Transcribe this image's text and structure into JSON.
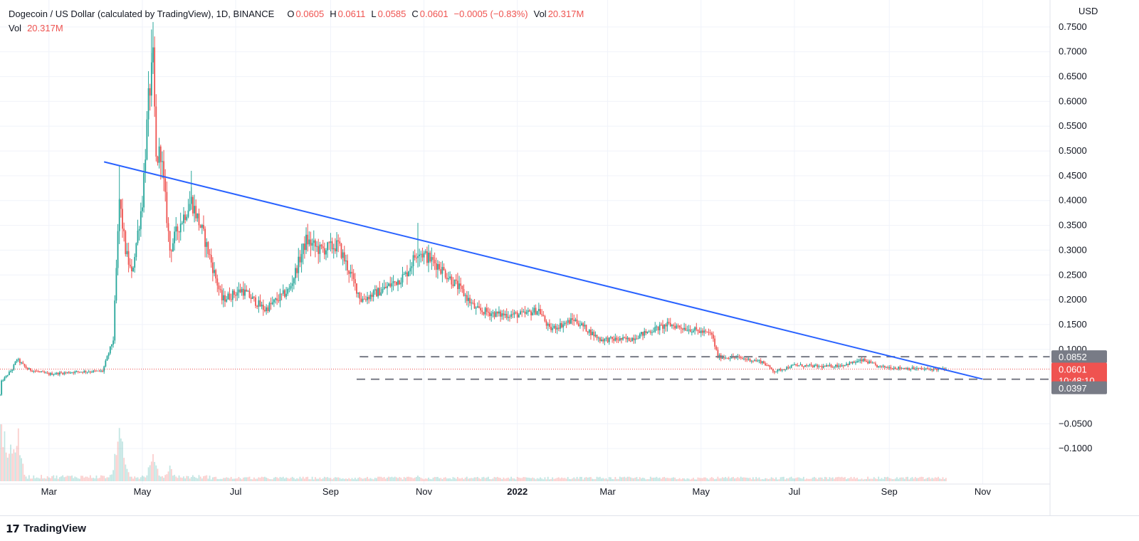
{
  "legend": {
    "title": "Dogecoin / US Dollar (calculated by TradingView), 1D, BINANCE",
    "open_label": "O",
    "open_value": "0.0605",
    "high_label": "H",
    "high_value": "0.0611",
    "low_label": "L",
    "low_value": "0.0585",
    "close_label": "C",
    "close_value": "0.0601",
    "change_value": "−0.0005 (−0.83%)",
    "vol_label": "Vol",
    "vol_value": "20.317M"
  },
  "currency": "USD",
  "footer": {
    "brand": "TradingView",
    "logo_glyph": "17"
  },
  "colors": {
    "up": "#26a69a",
    "down": "#ef5350",
    "trend": "#2962ff",
    "level": "#787b86",
    "current": "#ef5350"
  },
  "chart_data": {
    "type": "candlestick",
    "symbol": "DOGEUSD",
    "interval": "1D",
    "exchange": "BINANCE",
    "ylim": [
      -0.13,
      0.78
    ],
    "y_ticks": [
      -0.1,
      -0.05,
      0.1,
      0.15,
      0.2,
      0.25,
      0.3,
      0.35,
      0.4,
      0.45,
      0.5,
      0.55,
      0.6,
      0.65,
      0.7,
      0.75
    ],
    "y_tick_labels": [
      "−0.1000",
      "−0.0500",
      "0.1000",
      "0.1500",
      "0.2000",
      "0.2500",
      "0.3000",
      "0.3500",
      "0.4000",
      "0.4500",
      "0.5000",
      "0.5500",
      "0.6000",
      "0.6500",
      "0.7000",
      "0.7500"
    ],
    "x_start": "2021-01-28",
    "x_end": "2022-12-15",
    "x_ticks": [
      {
        "date": "2021-03-01",
        "label": "Mar"
      },
      {
        "date": "2021-05-01",
        "label": "May"
      },
      {
        "date": "2021-07-01",
        "label": "Jul"
      },
      {
        "date": "2021-09-01",
        "label": "Sep"
      },
      {
        "date": "2021-11-01",
        "label": "Nov"
      },
      {
        "date": "2022-01-01",
        "label": "2022",
        "bold": true
      },
      {
        "date": "2022-03-01",
        "label": "Mar"
      },
      {
        "date": "2022-05-01",
        "label": "May"
      },
      {
        "date": "2022-07-01",
        "label": "Jul"
      },
      {
        "date": "2022-09-01",
        "label": "Sep"
      },
      {
        "date": "2022-11-01",
        "label": "Nov"
      }
    ],
    "price_path": [
      [
        "2021-01-28",
        0.008
      ],
      [
        "2021-01-29",
        0.035
      ],
      [
        "2021-02-05",
        0.06
      ],
      [
        "2021-02-08",
        0.08
      ],
      [
        "2021-02-15",
        0.06
      ],
      [
        "2021-03-01",
        0.05
      ],
      [
        "2021-03-20",
        0.055
      ],
      [
        "2021-04-05",
        0.056
      ],
      [
        "2021-04-12",
        0.12
      ],
      [
        "2021-04-16",
        0.4
      ],
      [
        "2021-04-20",
        0.3
      ],
      [
        "2021-04-24",
        0.25
      ],
      [
        "2021-05-01",
        0.4
      ],
      [
        "2021-05-05",
        0.6
      ],
      [
        "2021-05-08",
        0.68
      ],
      [
        "2021-05-10",
        0.48
      ],
      [
        "2021-05-13",
        0.5
      ],
      [
        "2021-05-19",
        0.3
      ],
      [
        "2021-05-25",
        0.35
      ],
      [
        "2021-06-02",
        0.4
      ],
      [
        "2021-06-10",
        0.33
      ],
      [
        "2021-06-22",
        0.2
      ],
      [
        "2021-07-05",
        0.22
      ],
      [
        "2021-07-20",
        0.18
      ],
      [
        "2021-08-05",
        0.22
      ],
      [
        "2021-08-16",
        0.32
      ],
      [
        "2021-08-25",
        0.3
      ],
      [
        "2021-09-06",
        0.31
      ],
      [
        "2021-09-21",
        0.2
      ],
      [
        "2021-10-05",
        0.22
      ],
      [
        "2021-10-20",
        0.25
      ],
      [
        "2021-10-28",
        0.3
      ],
      [
        "2021-11-10",
        0.27
      ],
      [
        "2021-11-25",
        0.22
      ],
      [
        "2021-12-05",
        0.18
      ],
      [
        "2021-12-20",
        0.17
      ],
      [
        "2022-01-05",
        0.17
      ],
      [
        "2022-01-15",
        0.18
      ],
      [
        "2022-01-22",
        0.14
      ],
      [
        "2022-02-07",
        0.16
      ],
      [
        "2022-02-24",
        0.12
      ],
      [
        "2022-03-15",
        0.12
      ],
      [
        "2022-03-31",
        0.14
      ],
      [
        "2022-04-10",
        0.15
      ],
      [
        "2022-04-25",
        0.14
      ],
      [
        "2022-05-08",
        0.13
      ],
      [
        "2022-05-12",
        0.085
      ],
      [
        "2022-05-25",
        0.083
      ],
      [
        "2022-06-10",
        0.075
      ],
      [
        "2022-06-18",
        0.055
      ],
      [
        "2022-07-01",
        0.068
      ],
      [
        "2022-07-20",
        0.065
      ],
      [
        "2022-08-01",
        0.068
      ],
      [
        "2022-08-15",
        0.078
      ],
      [
        "2022-08-25",
        0.065
      ],
      [
        "2022-09-10",
        0.062
      ],
      [
        "2022-09-25",
        0.06
      ],
      [
        "2022-10-08",
        0.0601
      ]
    ],
    "volume_spikes": [
      [
        "2021-01-29",
        0.95
      ],
      [
        "2021-02-04",
        0.6
      ],
      [
        "2021-02-08",
        0.8
      ],
      [
        "2021-04-16",
        0.75
      ],
      [
        "2021-04-18",
        0.45
      ],
      [
        "2021-05-08",
        0.35
      ],
      [
        "2021-05-19",
        0.2
      ],
      [
        "2021-10-28",
        0.1
      ]
    ],
    "trendline": {
      "start": [
        "2021-04-06",
        0.478
      ],
      "end": [
        "2022-11-01",
        0.04
      ]
    },
    "levels": [
      {
        "value": 0.0852,
        "label": "0.0852",
        "from": "2021-09-20"
      },
      {
        "value": 0.0397,
        "label": "0.0397",
        "from": "2021-09-18"
      }
    ],
    "last_price": {
      "value": 0.0601,
      "label": "0.0601",
      "countdown": "10:48:10"
    }
  }
}
